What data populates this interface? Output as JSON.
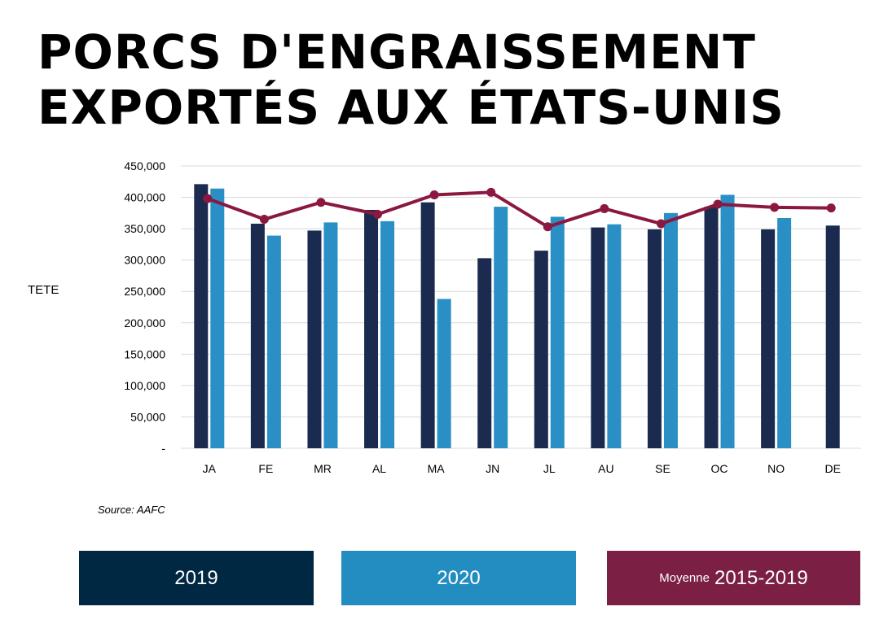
{
  "title_line1": "PORCS D'ENGRAISSEMENT",
  "title_line2": "EXPORTÉS AUX ÉTATS-UNIS",
  "source": "Source: AAFC",
  "legend": {
    "s2019": "2019",
    "s2020": "2020",
    "avg_prefix": "Moyenne",
    "avg_years": "2015-2019"
  },
  "colors": {
    "s2019": "#1b2b4f",
    "s2020": "#2a8fc4",
    "avg": "#8a1840",
    "legend_2019": "#002843",
    "legend_2020": "#238dc1",
    "legend_avg": "#7b1f45",
    "grid": "#d9d9d9"
  },
  "chart_data": {
    "type": "bar",
    "ylabel": "TETE",
    "ylim": [
      0,
      450000
    ],
    "yticks": [
      0,
      50000,
      100000,
      150000,
      200000,
      250000,
      300000,
      350000,
      400000,
      450000
    ],
    "ytick_labels": [
      "-",
      "50,000",
      "100,000",
      "150,000",
      "200,000",
      "250,000",
      "300,000",
      "350,000",
      "400,000",
      "450,000"
    ],
    "grid": true,
    "categories": [
      "JA",
      "FE",
      "MR",
      "AL",
      "MA",
      "JN",
      "JL",
      "AU",
      "SE",
      "OC",
      "NO",
      "DE"
    ],
    "series": [
      {
        "name": "2019",
        "kind": "bar",
        "values": [
          421000,
          358000,
          347000,
          380000,
          392000,
          303000,
          315000,
          352000,
          349000,
          385000,
          349000,
          355000
        ]
      },
      {
        "name": "2020",
        "kind": "bar",
        "values": [
          414000,
          339000,
          360000,
          362000,
          238000,
          385000,
          369000,
          357000,
          375000,
          404000,
          367000,
          null
        ]
      },
      {
        "name": "Moyenne 2015-2019",
        "kind": "line",
        "values": [
          398000,
          365000,
          392000,
          373000,
          404000,
          408000,
          353000,
          382000,
          358000,
          389000,
          384000,
          383000
        ]
      }
    ]
  }
}
